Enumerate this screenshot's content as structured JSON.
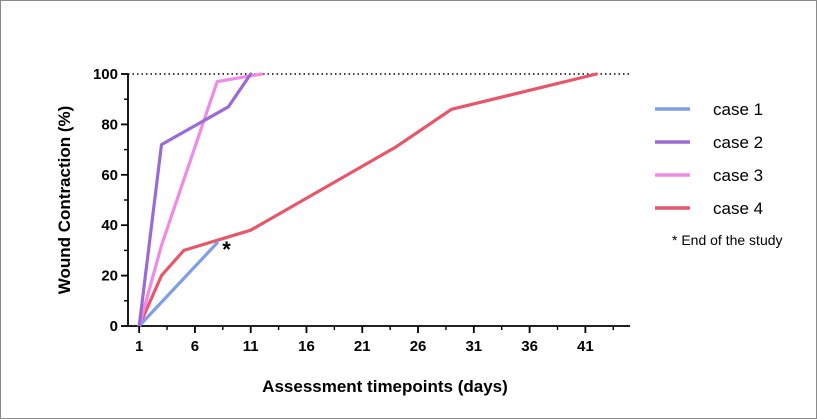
{
  "chart_data": {
    "type": "line",
    "title": "",
    "xlabel": "Assessment timepoints (days)",
    "ylabel": "Wound Contraction (%)",
    "xlim": [
      0,
      45
    ],
    "ylim": [
      0,
      100
    ],
    "x_ticks": [
      1,
      6,
      11,
      16,
      21,
      26,
      31,
      36,
      41
    ],
    "y_ticks": [
      0,
      20,
      40,
      60,
      80,
      100
    ],
    "reference_line": {
      "y": 100,
      "style": "dotted"
    },
    "legend_position": "right",
    "series": [
      {
        "name": "case 1",
        "color": "#7f9de8",
        "points": [
          [
            1,
            0
          ],
          [
            8,
            33
          ]
        ]
      },
      {
        "name": "case 2",
        "color": "#9b6bd4",
        "points": [
          [
            1,
            0
          ],
          [
            3,
            72
          ],
          [
            9,
            87
          ],
          [
            11,
            100
          ]
        ]
      },
      {
        "name": "case 3",
        "color": "#f08ae6",
        "points": [
          [
            1,
            0
          ],
          [
            3,
            32
          ],
          [
            8,
            97
          ],
          [
            12,
            100
          ]
        ]
      },
      {
        "name": "case 4",
        "color": "#e8566a",
        "points": [
          [
            1,
            0
          ],
          [
            3,
            20
          ],
          [
            5,
            30
          ],
          [
            11,
            38
          ],
          [
            24,
            71
          ],
          [
            29,
            86
          ],
          [
            42,
            100
          ]
        ]
      }
    ],
    "annotations": [
      {
        "text": "*",
        "x": 8,
        "y": 33
      }
    ],
    "footnote": "* End of the study"
  }
}
